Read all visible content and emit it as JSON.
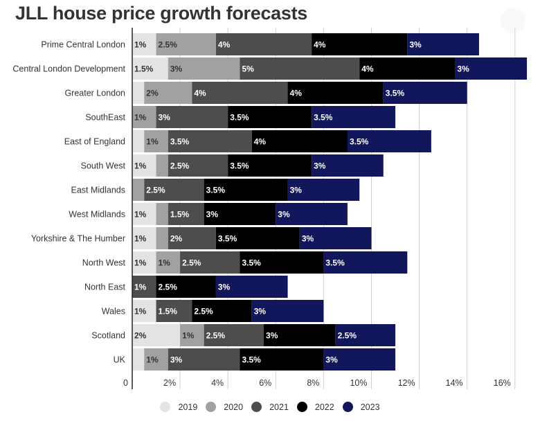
{
  "page": {
    "title": "JLL house price growth forecasts"
  },
  "chart_data": {
    "type": "bar",
    "orientation": "horizontal",
    "stacked": true,
    "title": "JLL house price growth forecasts",
    "xlabel": "",
    "ylabel": "",
    "xlim": [
      0,
      16.5
    ],
    "x_ticks": [
      0,
      2,
      4,
      6,
      8,
      10,
      12,
      14,
      16
    ],
    "x_tick_labels": [
      "0",
      "2%",
      "4%",
      "6%",
      "8%",
      "10%",
      "12%",
      "14%",
      "16%"
    ],
    "grid": "vertical",
    "legend_position": "bottom",
    "categories": [
      "Prime Central London",
      "Central London Development",
      "Greater London",
      "SouthEast",
      "East of England",
      "South West",
      "East Midlands",
      "West Midlands",
      "Yorkshire & The Humber",
      "North West",
      "North East",
      "Wales",
      "Scotland",
      "UK"
    ],
    "series": [
      {
        "name": "2019",
        "color": "#e3e3e3",
        "label_color": "#333333",
        "values": [
          1,
          1.5,
          0.5,
          0,
          0.5,
          1,
          0,
          1,
          1,
          1,
          0,
          1,
          2,
          0.5
        ],
        "labels": [
          "1%",
          "1.5%",
          "",
          "",
          "",
          "1%",
          "",
          "1%",
          "1%",
          "1%",
          "",
          "1%",
          "2%",
          ""
        ]
      },
      {
        "name": "2020",
        "color": "#a1a1a1",
        "label_color": "#333333",
        "values": [
          2.5,
          3,
          2,
          1,
          1,
          0.5,
          0.5,
          0.5,
          0.5,
          1,
          0,
          0,
          1,
          1
        ],
        "labels": [
          "2.5%",
          "3%",
          "2%",
          "1%",
          "1%",
          "",
          "",
          "",
          "",
          "1%",
          "",
          "",
          "1%",
          "1%"
        ]
      },
      {
        "name": "2021",
        "color": "#4d4d4d",
        "label_color": "#ffffff",
        "values": [
          4,
          5,
          4,
          3,
          3.5,
          2.5,
          2.5,
          1.5,
          2,
          2.5,
          1,
          1.5,
          2.5,
          3
        ],
        "labels": [
          "4%",
          "5%",
          "4%",
          "3%",
          "3.5%",
          "2.5%",
          "2.5%",
          "1.5%",
          "2%",
          "2.5%",
          "1%",
          "1.5%",
          "2.5%",
          "3%"
        ]
      },
      {
        "name": "2022",
        "color": "#000000",
        "label_color": "#ffffff",
        "values": [
          4,
          4,
          4,
          3.5,
          4,
          3.5,
          3.5,
          3,
          3.5,
          3.5,
          2.5,
          2.5,
          3,
          3.5
        ],
        "labels": [
          "4%",
          "4%",
          "4%",
          "3.5%",
          "4%",
          "3.5%",
          "3.5%",
          "3%",
          "3.5%",
          "3.5%",
          "2.5%",
          "2.5%",
          "3%",
          "3.5%"
        ]
      },
      {
        "name": "2023",
        "color": "#12165a",
        "label_color": "#ffffff",
        "values": [
          3,
          3,
          3.5,
          3.5,
          3.5,
          3,
          3,
          3,
          3,
          3.5,
          3,
          3,
          2.5,
          3
        ],
        "labels": [
          "3%",
          "3%",
          "3.5%",
          "3.5%",
          "3.5%",
          "3%",
          "3%",
          "3%",
          "3%",
          "3.5%",
          "3%",
          "3%",
          "2.5%",
          "3%"
        ]
      }
    ]
  }
}
